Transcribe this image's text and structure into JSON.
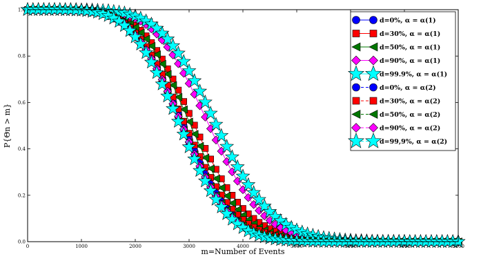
{
  "chart_data": {
    "type": "line",
    "title": "",
    "xlabel": "m=Number of Events",
    "ylabel": "P{Θn > m}",
    "xlim": [
      0,
      8000
    ],
    "ylim": [
      0.0,
      1.0
    ],
    "xticks": [
      "0",
      "1000",
      "2000",
      "3000",
      "4000",
      "5000",
      "6000",
      "7000",
      "8000"
    ],
    "yticks": [
      "0.0",
      "0.2",
      "0.4",
      "0.6",
      "0.8",
      "1.0"
    ],
    "grid": false,
    "legend_position": "top-right",
    "x": [
      0,
      100,
      200,
      300,
      400,
      500,
      600,
      700,
      800,
      900,
      1000,
      1100,
      1200,
      1300,
      1400,
      1500,
      1600,
      1700,
      1800,
      1900,
      2000,
      2100,
      2200,
      2300,
      2400,
      2500,
      2600,
      2700,
      2800,
      2900,
      3000,
      3100,
      3200,
      3300,
      3400,
      3500,
      3600,
      3700,
      3800,
      3900,
      4000,
      4100,
      4200,
      4300,
      4400,
      4500,
      4600,
      4700,
      4800,
      4900,
      5000,
      5100,
      5200,
      5300,
      5400,
      5500,
      5600,
      5700,
      5800,
      5900,
      6000,
      6100,
      6200,
      6300,
      6400,
      6500,
      6600,
      6700,
      6800,
      6900,
      7000,
      7100,
      7200,
      7300,
      7400,
      7500,
      7600,
      7700,
      7800,
      7900,
      8000
    ],
    "series": [
      {
        "name": "d=0%, α = α(1)",
        "color": "#0000ff",
        "marker": "circle",
        "line": "solid",
        "values": [
          1.0,
          1.0,
          1.0,
          1.0,
          1.0,
          1.0,
          1.0,
          0.999,
          0.999,
          0.998,
          0.997,
          0.995,
          0.993,
          0.99,
          0.985,
          0.978,
          0.969,
          0.957,
          0.941,
          0.922,
          0.899,
          0.871,
          0.838,
          0.801,
          0.759,
          0.713,
          0.663,
          0.611,
          0.556,
          0.501,
          0.446,
          0.392,
          0.341,
          0.293,
          0.249,
          0.209,
          0.174,
          0.143,
          0.116,
          0.093,
          0.074,
          0.059,
          0.046,
          0.035,
          0.027,
          0.021,
          0.016,
          0.012,
          0.009,
          0.007,
          0.005,
          0.004,
          0.003,
          0.002,
          0.001,
          0.001,
          0.001,
          0.0,
          0.0,
          0.0,
          0.0,
          0.0,
          0.0,
          0.0,
          0.0,
          0.0,
          0.0,
          0.0,
          0.0,
          0.0,
          0.0,
          0.0,
          0.0,
          0.0,
          0.0,
          0.0,
          0.0,
          0.0,
          0.0,
          0.0,
          0.0
        ]
      },
      {
        "name": "d=30%, α = α(1)",
        "color": "#ff0000",
        "marker": "square",
        "line": "solid",
        "values": [
          1.0,
          1.0,
          1.0,
          1.0,
          1.0,
          1.0,
          1.0,
          1.0,
          0.999,
          0.999,
          0.998,
          0.997,
          0.995,
          0.993,
          0.99,
          0.986,
          0.98,
          0.972,
          0.962,
          0.949,
          0.932,
          0.911,
          0.887,
          0.858,
          0.824,
          0.787,
          0.745,
          0.701,
          0.653,
          0.604,
          0.553,
          0.502,
          0.451,
          0.402,
          0.356,
          0.312,
          0.271,
          0.233,
          0.2,
          0.17,
          0.143,
          0.12,
          0.1,
          0.083,
          0.069,
          0.056,
          0.046,
          0.038,
          0.031,
          0.025,
          0.02,
          0.016,
          0.013,
          0.011,
          0.009,
          0.007,
          0.005,
          0.004,
          0.003,
          0.003,
          0.002,
          0.002,
          0.001,
          0.001,
          0.001,
          0.001,
          0.001,
          0.0,
          0.0,
          0.0,
          0.0,
          0.0,
          0.0,
          0.0,
          0.0,
          0.0,
          0.0,
          0.0,
          0.0,
          0.0,
          0.0
        ]
      },
      {
        "name": "d=50%, α = α(1)",
        "color": "#007700",
        "marker": "triangle-left",
        "line": "solid",
        "values": [
          1.0,
          1.0,
          1.0,
          1.0,
          1.0,
          1.0,
          1.0,
          0.999,
          0.999,
          0.999,
          0.998,
          0.996,
          0.995,
          0.992,
          0.989,
          0.984,
          0.977,
          0.968,
          0.957,
          0.942,
          0.924,
          0.901,
          0.874,
          0.843,
          0.807,
          0.766,
          0.722,
          0.674,
          0.623,
          0.57,
          0.517,
          0.464,
          0.412,
          0.362,
          0.315,
          0.272,
          0.232,
          0.197,
          0.166,
          0.138,
          0.114,
          0.094,
          0.077,
          0.062,
          0.05,
          0.04,
          0.032,
          0.026,
          0.02,
          0.016,
          0.013,
          0.01,
          0.008,
          0.006,
          0.005,
          0.004,
          0.003,
          0.002,
          0.002,
          0.001,
          0.001,
          0.001,
          0.001,
          0.0,
          0.0,
          0.0,
          0.0,
          0.0,
          0.0,
          0.0,
          0.0,
          0.0,
          0.0,
          0.0,
          0.0,
          0.0,
          0.0,
          0.0,
          0.0,
          0.0,
          0.0
        ]
      },
      {
        "name": "d=90%, α = α(1)",
        "color": "#ff00ff",
        "marker": "diamond",
        "line": "solid",
        "values": [
          1.0,
          1.0,
          1.0,
          1.0,
          1.0,
          1.0,
          1.0,
          1.0,
          1.0,
          0.999,
          0.999,
          0.998,
          0.998,
          0.997,
          0.995,
          0.993,
          0.99,
          0.985,
          0.98,
          0.972,
          0.963,
          0.951,
          0.936,
          0.917,
          0.895,
          0.869,
          0.839,
          0.805,
          0.767,
          0.726,
          0.682,
          0.635,
          0.586,
          0.537,
          0.487,
          0.438,
          0.39,
          0.345,
          0.301,
          0.261,
          0.224,
          0.19,
          0.16,
          0.134,
          0.111,
          0.091,
          0.074,
          0.06,
          0.048,
          0.038,
          0.03,
          0.024,
          0.018,
          0.014,
          0.011,
          0.009,
          0.007,
          0.005,
          0.004,
          0.003,
          0.002,
          0.002,
          0.001,
          0.001,
          0.001,
          0.001,
          0.0,
          0.0,
          0.0,
          0.0,
          0.0,
          0.0,
          0.0,
          0.0,
          0.0,
          0.0,
          0.0,
          0.0,
          0.0,
          0.0,
          0.0
        ]
      },
      {
        "name": "d=99.9%, α = α(1)",
        "color": "#00ffff",
        "marker": "star",
        "line": "solid",
        "values": [
          1.0,
          1.0,
          1.0,
          1.0,
          1.0,
          1.0,
          1.0,
          1.0,
          1.0,
          1.0,
          0.999,
          0.999,
          0.998,
          0.997,
          0.996,
          0.995,
          0.992,
          0.989,
          0.985,
          0.979,
          0.972,
          0.963,
          0.951,
          0.937,
          0.919,
          0.898,
          0.873,
          0.844,
          0.812,
          0.776,
          0.736,
          0.693,
          0.648,
          0.601,
          0.553,
          0.505,
          0.457,
          0.41,
          0.365,
          0.322,
          0.282,
          0.245,
          0.211,
          0.181,
          0.153,
          0.129,
          0.108,
          0.09,
          0.074,
          0.061,
          0.05,
          0.041,
          0.033,
          0.027,
          0.022,
          0.017,
          0.014,
          0.011,
          0.009,
          0.007,
          0.006,
          0.004,
          0.004,
          0.003,
          0.002,
          0.002,
          0.001,
          0.001,
          0.001,
          0.001,
          0.001,
          0.0,
          0.0,
          0.0,
          0.0,
          0.0,
          0.0,
          0.0,
          0.0,
          0.0,
          0.0
        ]
      },
      {
        "name": "d=0%, α = α(2)",
        "color": "#0000ff",
        "marker": "circle",
        "line": "dashed",
        "values": [
          1.0,
          1.0,
          1.0,
          1.0,
          1.0,
          1.0,
          1.0,
          0.999,
          0.999,
          0.998,
          0.996,
          0.994,
          0.991,
          0.987,
          0.981,
          0.972,
          0.961,
          0.947,
          0.929,
          0.907,
          0.881,
          0.85,
          0.814,
          0.774,
          0.73,
          0.682,
          0.631,
          0.578,
          0.523,
          0.469,
          0.416,
          0.364,
          0.316,
          0.27,
          0.229,
          0.192,
          0.159,
          0.13,
          0.105,
          0.085,
          0.067,
          0.053,
          0.041,
          0.032,
          0.024,
          0.019,
          0.014,
          0.011,
          0.008,
          0.006,
          0.004,
          0.003,
          0.002,
          0.002,
          0.001,
          0.001,
          0.001,
          0.0,
          0.0,
          0.0,
          0.0,
          0.0,
          0.0,
          0.0,
          0.0,
          0.0,
          0.0,
          0.0,
          0.0,
          0.0,
          0.0,
          0.0,
          0.0,
          0.0,
          0.0,
          0.0,
          0.0,
          0.0,
          0.0,
          0.0,
          0.0
        ]
      },
      {
        "name": "d=30%, α = α(2)",
        "color": "#ff0000",
        "marker": "square",
        "line": "dashed",
        "values": [
          1.0,
          1.0,
          1.0,
          1.0,
          1.0,
          1.0,
          1.0,
          0.999,
          0.999,
          0.998,
          0.997,
          0.995,
          0.993,
          0.989,
          0.984,
          0.977,
          0.968,
          0.956,
          0.941,
          0.922,
          0.899,
          0.872,
          0.84,
          0.804,
          0.764,
          0.72,
          0.673,
          0.623,
          0.572,
          0.519,
          0.467,
          0.416,
          0.367,
          0.32,
          0.277,
          0.237,
          0.201,
          0.169,
          0.14,
          0.116,
          0.095,
          0.077,
          0.062,
          0.05,
          0.04,
          0.031,
          0.025,
          0.019,
          0.015,
          0.012,
          0.009,
          0.007,
          0.005,
          0.004,
          0.003,
          0.002,
          0.002,
          0.001,
          0.001,
          0.001,
          0.001,
          0.0,
          0.0,
          0.0,
          0.0,
          0.0,
          0.0,
          0.0,
          0.0,
          0.0,
          0.0,
          0.0,
          0.0,
          0.0,
          0.0,
          0.0,
          0.0,
          0.0,
          0.0,
          0.0,
          0.0
        ]
      },
      {
        "name": "d=50%, α = α(2)",
        "color": "#007700",
        "marker": "triangle-left",
        "line": "dashed",
        "values": [
          1.0,
          1.0,
          1.0,
          1.0,
          1.0,
          1.0,
          1.0,
          0.999,
          0.999,
          0.998,
          0.996,
          0.994,
          0.991,
          0.987,
          0.982,
          0.974,
          0.963,
          0.95,
          0.933,
          0.911,
          0.886,
          0.856,
          0.821,
          0.782,
          0.739,
          0.692,
          0.642,
          0.589,
          0.535,
          0.481,
          0.427,
          0.375,
          0.326,
          0.28,
          0.238,
          0.2,
          0.166,
          0.136,
          0.11,
          0.088,
          0.07,
          0.055,
          0.043,
          0.033,
          0.026,
          0.02,
          0.015,
          0.011,
          0.008,
          0.006,
          0.005,
          0.003,
          0.003,
          0.002,
          0.001,
          0.001,
          0.001,
          0.0,
          0.0,
          0.0,
          0.0,
          0.0,
          0.0,
          0.0,
          0.0,
          0.0,
          0.0,
          0.0,
          0.0,
          0.0,
          0.0,
          0.0,
          0.0,
          0.0,
          0.0,
          0.0,
          0.0,
          0.0,
          0.0,
          0.0,
          0.0
        ]
      },
      {
        "name": "d=90%, α = α(2)",
        "color": "#ff00ff",
        "marker": "diamond",
        "line": "dashed",
        "values": [
          1.0,
          1.0,
          1.0,
          1.0,
          1.0,
          1.0,
          1.0,
          0.999,
          0.999,
          0.998,
          0.997,
          0.995,
          0.992,
          0.989,
          0.983,
          0.976,
          0.966,
          0.953,
          0.937,
          0.916,
          0.891,
          0.862,
          0.828,
          0.789,
          0.746,
          0.699,
          0.648,
          0.595,
          0.54,
          0.485,
          0.43,
          0.377,
          0.326,
          0.279,
          0.236,
          0.197,
          0.162,
          0.132,
          0.106,
          0.085,
          0.067,
          0.052,
          0.04,
          0.031,
          0.024,
          0.018,
          0.013,
          0.01,
          0.007,
          0.005,
          0.004,
          0.003,
          0.002,
          0.001,
          0.001,
          0.001,
          0.0,
          0.0,
          0.0,
          0.0,
          0.0,
          0.0,
          0.0,
          0.0,
          0.0,
          0.0,
          0.0,
          0.0,
          0.0,
          0.0,
          0.0,
          0.0,
          0.0,
          0.0,
          0.0,
          0.0,
          0.0,
          0.0,
          0.0,
          0.0,
          0.0
        ]
      },
      {
        "name": "d=99,9%, α = α(2)",
        "color": "#00ffff",
        "marker": "star",
        "line": "dashed",
        "values": [
          1.0,
          1.0,
          1.0,
          1.0,
          1.0,
          1.0,
          1.0,
          0.999,
          0.999,
          0.998,
          0.997,
          0.995,
          0.992,
          0.988,
          0.982,
          0.974,
          0.963,
          0.949,
          0.931,
          0.909,
          0.882,
          0.851,
          0.814,
          0.773,
          0.728,
          0.679,
          0.627,
          0.573,
          0.518,
          0.463,
          0.408,
          0.356,
          0.306,
          0.261,
          0.219,
          0.182,
          0.149,
          0.12,
          0.096,
          0.076,
          0.06,
          0.046,
          0.035,
          0.027,
          0.02,
          0.015,
          0.011,
          0.008,
          0.006,
          0.004,
          0.003,
          0.002,
          0.002,
          0.001,
          0.001,
          0.0,
          0.0,
          0.0,
          0.0,
          0.0,
          0.0,
          0.0,
          0.0,
          0.0,
          0.0,
          0.0,
          0.0,
          0.0,
          0.0,
          0.0,
          0.0,
          0.0,
          0.0,
          0.0,
          0.0,
          0.0,
          0.0,
          0.0,
          0.0,
          0.0,
          0.0
        ]
      }
    ]
  }
}
